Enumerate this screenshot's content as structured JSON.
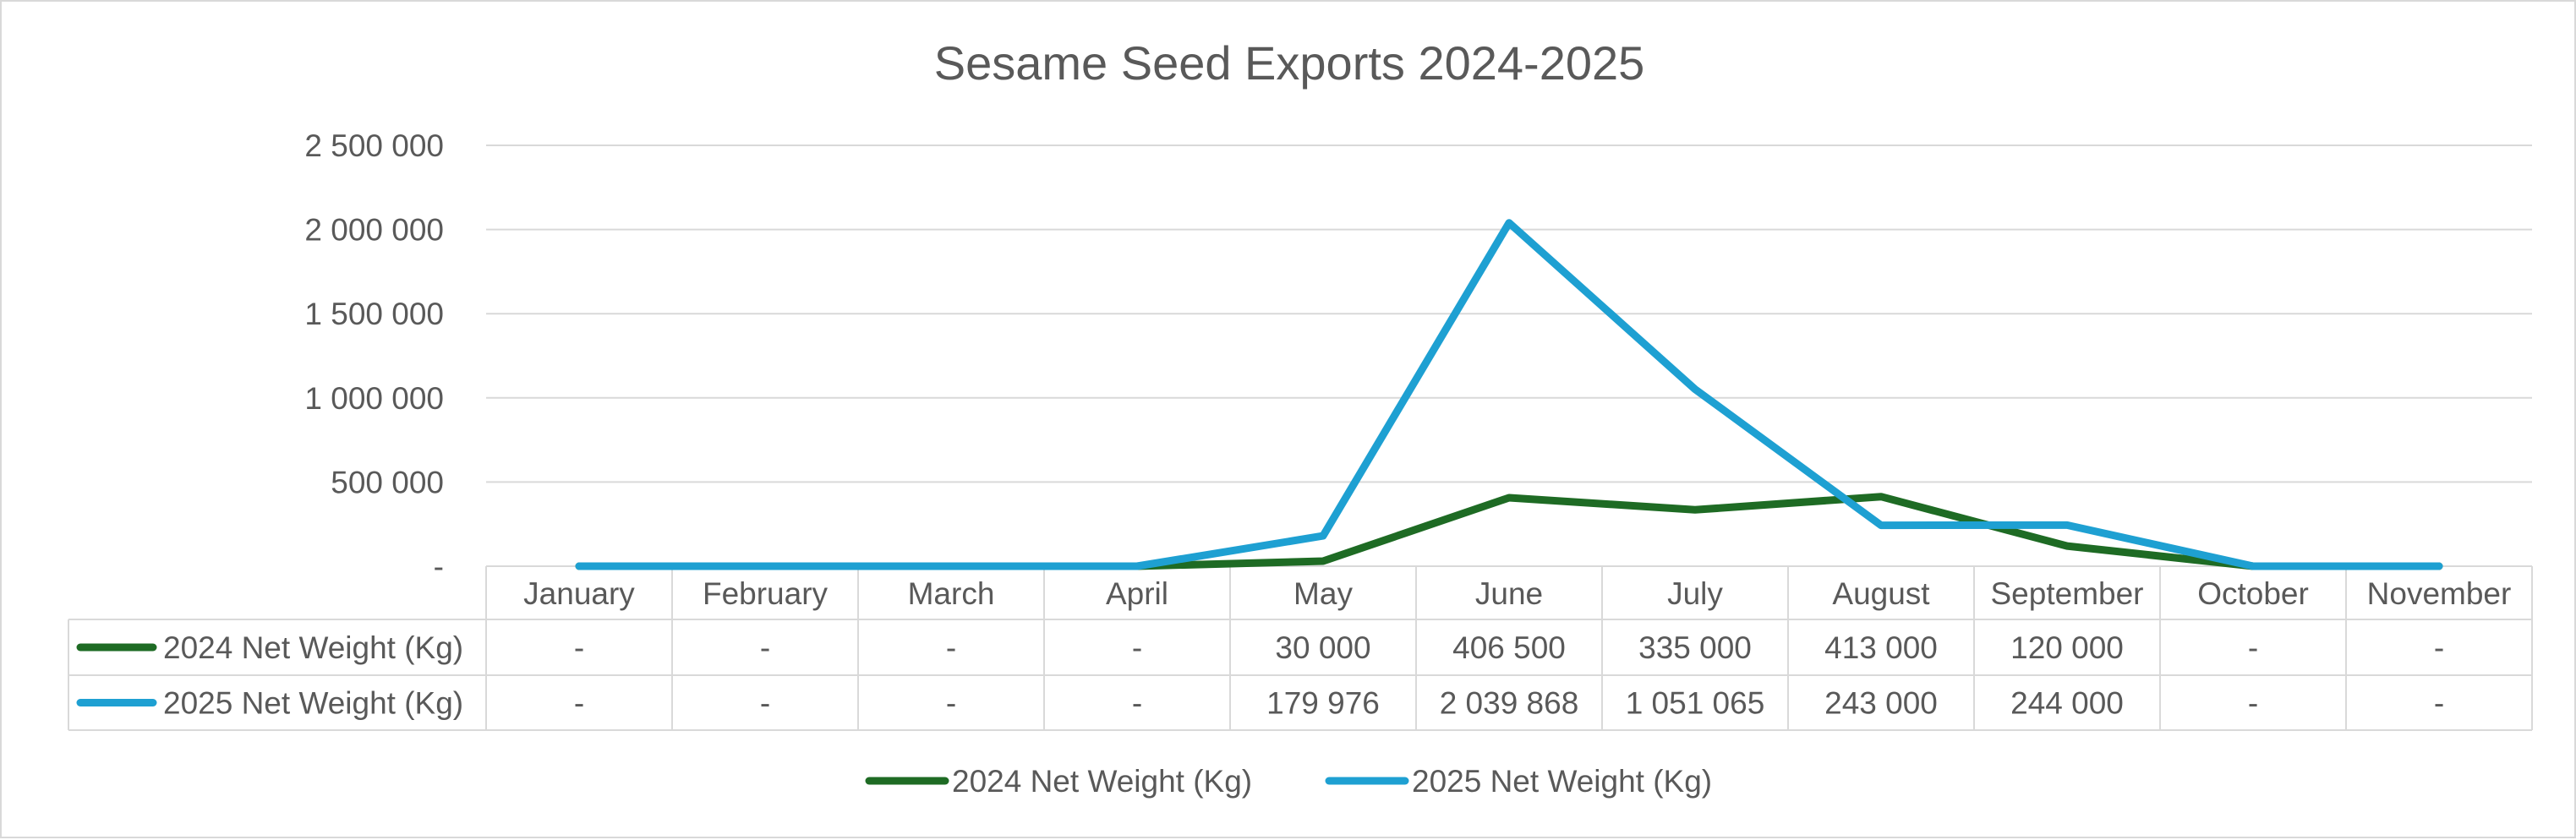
{
  "chart_data": {
    "type": "line",
    "title": "Sesame Seed Exports 2024-2025",
    "categories": [
      "January",
      "February",
      "March",
      "April",
      "May",
      "June",
      "July",
      "August",
      "September",
      "October",
      "November"
    ],
    "ylim": [
      0,
      2500000
    ],
    "yticks": [
      0,
      500000,
      1000000,
      1500000,
      2000000,
      2500000
    ],
    "ytick_labels": [
      "-",
      "500 000",
      "1 000 000",
      "1 500 000",
      "2 000 000",
      "2 500 000"
    ],
    "grid": true,
    "legend_position": "bottom",
    "data_table": true,
    "series": [
      {
        "name": "2024 Net Weight (Kg)",
        "color": "#1e6b24",
        "values": [
          0,
          0,
          0,
          0,
          30000,
          406500,
          335000,
          413000,
          120000,
          0,
          0
        ],
        "table_labels": [
          "-",
          "-",
          "-",
          "-",
          "30 000",
          "406 500",
          "335 000",
          "413 000",
          "120 000",
          "-",
          "-"
        ]
      },
      {
        "name": "2025 Net Weight (Kg)",
        "color": "#1ea0d2",
        "values": [
          0,
          0,
          0,
          0,
          179976,
          2039868,
          1051065,
          243000,
          244000,
          0,
          0
        ],
        "table_labels": [
          "-",
          "-",
          "-",
          "-",
          "179 976",
          "2 039 868",
          "1 051 065",
          "243 000",
          "244 000",
          "-",
          "-"
        ]
      }
    ]
  }
}
